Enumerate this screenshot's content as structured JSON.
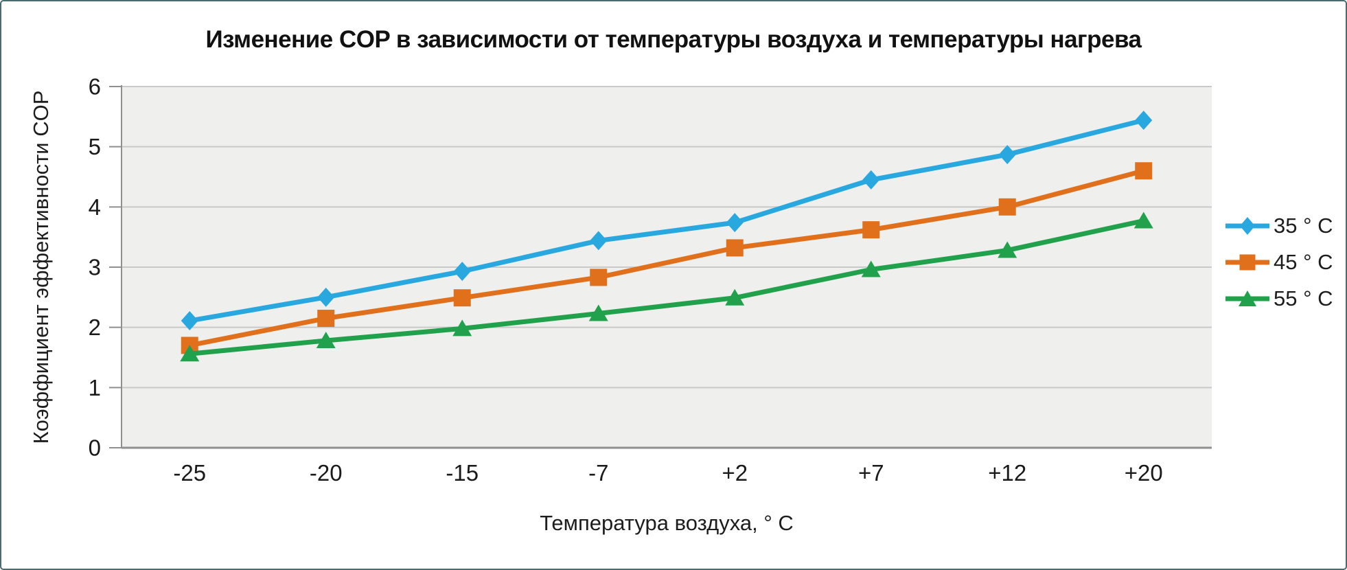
{
  "frame": {
    "border_color": "#4a6b70",
    "background": "#ffffff"
  },
  "chart_data": {
    "type": "line",
    "title": "Изменение COP в зависимости от температуры воздуха и температуры нагрева",
    "xlabel": "Температура воздуха, ° С",
    "ylabel": "Коэффициент эффективности COP",
    "categories": [
      "-25",
      "-20",
      "-15",
      "-7",
      "+2",
      "+7",
      "+12",
      "+20"
    ],
    "ylim": [
      0,
      6
    ],
    "yticks": [
      0,
      1,
      2,
      3,
      4,
      5,
      6
    ],
    "grid": true,
    "legend_position": "right",
    "plot_bg": "#efefed",
    "grid_color": "#c9c9c9",
    "axis_color": "#8f8f8f",
    "tick_label_color": "#1a1a1a",
    "series": [
      {
        "name": "35 ° С",
        "marker": "diamond",
        "color": "#29a8e0",
        "values": [
          2.11,
          2.5,
          2.93,
          3.44,
          3.74,
          4.45,
          4.87,
          5.44
        ]
      },
      {
        "name": "45 ° С",
        "marker": "square",
        "color": "#e0701c",
        "values": [
          1.7,
          2.15,
          2.49,
          2.83,
          3.32,
          3.62,
          4.0,
          4.6
        ]
      },
      {
        "name": "55 ° С",
        "marker": "triangle",
        "color": "#21a14b",
        "values": [
          1.56,
          1.78,
          1.98,
          2.23,
          2.49,
          2.96,
          3.28,
          3.77
        ]
      }
    ]
  }
}
